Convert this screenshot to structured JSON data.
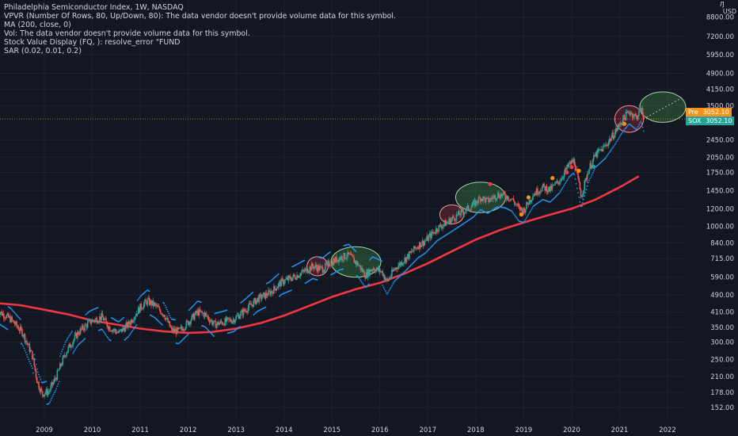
{
  "legend": {
    "title": "Philadelphia Semiconductor Index, 1W, NASDAQ",
    "vpvr": "VPVR (Number Of Rows, 80, Up/Down, 80): The data vendor doesn't provide volume data for this symbol.",
    "ma": "MA (200, close, 0)",
    "vol": "Vol: The data vendor doesn't provide volume data for this symbol.",
    "svd": "Stock Value Display (FQ, ): resolve_error \"FUND",
    "sar": "SAR (0.02, 0.01, 0.2)"
  },
  "price_axis": {
    "currency_top": "Ԓ      ",
    "currency_label": "USD",
    "ticks": [
      "8800.00",
      "7200.00",
      "5950.00",
      "4900.00",
      "4150.00",
      "3500.00",
      "2450.00",
      "2050.00",
      "1750.00",
      "1450.00",
      "1200.00",
      "1000.00",
      "840.00",
      "715.00",
      "590.00",
      "490.00",
      "410.00",
      "350.00",
      "300.00",
      "250.00",
      "210.00",
      "178.00",
      "152.00"
    ]
  },
  "tags": {
    "pre_label": "Pre",
    "pre_value": "3052.10",
    "sox_label": "SOX",
    "sox_value": "3052.10",
    "pre_color": "#f7931a",
    "sox_color": "#26a69a"
  },
  "colors": {
    "background": "#131722",
    "up": "#26a69a",
    "down": "#ef5350",
    "ma": "#f23645",
    "sar": "#2196f3",
    "current_line": "#f7931a"
  },
  "chart_data": {
    "type": "candlestick",
    "title": "Philadelphia Semiconductor Index, 1W, NASDAQ",
    "y_scale": "log",
    "ylim": [
      140,
      11000
    ],
    "x_ticks": [
      "2009",
      "2010",
      "2011",
      "2012",
      "2013",
      "2014",
      "2015",
      "2016",
      "2017",
      "2018",
      "2019",
      "2020",
      "2021",
      "2022"
    ],
    "current_price": 3052.1,
    "price_path": [
      [
        2008.0,
        420
      ],
      [
        2008.3,
        380
      ],
      [
        2008.55,
        330
      ],
      [
        2008.75,
        260
      ],
      [
        2008.85,
        200
      ],
      [
        2008.95,
        175
      ],
      [
        2009.1,
        180
      ],
      [
        2009.25,
        210
      ],
      [
        2009.45,
        270
      ],
      [
        2009.7,
        330
      ],
      [
        2009.95,
        370
      ],
      [
        2010.2,
        390
      ],
      [
        2010.35,
        350
      ],
      [
        2010.55,
        330
      ],
      [
        2010.75,
        360
      ],
      [
        2011.0,
        430
      ],
      [
        2011.15,
        460
      ],
      [
        2011.3,
        440
      ],
      [
        2011.5,
        400
      ],
      [
        2011.65,
        340
      ],
      [
        2011.8,
        335
      ],
      [
        2011.95,
        360
      ],
      [
        2012.2,
        410
      ],
      [
        2012.35,
        400
      ],
      [
        2012.55,
        360
      ],
      [
        2012.75,
        370
      ],
      [
        2012.95,
        380
      ],
      [
        2013.2,
        420
      ],
      [
        2013.45,
        470
      ],
      [
        2013.7,
        500
      ],
      [
        2013.95,
        560
      ],
      [
        2014.2,
        590
      ],
      [
        2014.45,
        630
      ],
      [
        2014.6,
        660
      ],
      [
        2014.8,
        640
      ],
      [
        2014.95,
        680
      ],
      [
        2015.15,
        720
      ],
      [
        2015.35,
        740
      ],
      [
        2015.55,
        670
      ],
      [
        2015.7,
        600
      ],
      [
        2015.85,
        650
      ],
      [
        2016.05,
        620
      ],
      [
        2016.15,
        560
      ],
      [
        2016.3,
        640
      ],
      [
        2016.55,
        720
      ],
      [
        2016.8,
        820
      ],
      [
        2016.95,
        860
      ],
      [
        2017.2,
        980
      ],
      [
        2017.45,
        1060
      ],
      [
        2017.7,
        1150
      ],
      [
        2017.95,
        1250
      ],
      [
        2018.1,
        1350
      ],
      [
        2018.25,
        1300
      ],
      [
        2018.45,
        1390
      ],
      [
        2018.6,
        1380
      ],
      [
        2018.75,
        1330
      ],
      [
        2018.9,
        1200
      ],
      [
        2019.0,
        1180
      ],
      [
        2019.2,
        1400
      ],
      [
        2019.4,
        1500
      ],
      [
        2019.55,
        1460
      ],
      [
        2019.75,
        1610
      ],
      [
        2019.95,
        1900
      ],
      [
        2020.05,
        1980
      ],
      [
        2020.2,
        1370
      ],
      [
        2020.35,
        1800
      ],
      [
        2020.5,
        2100
      ],
      [
        2020.7,
        2300
      ],
      [
        2020.9,
        2650
      ],
      [
        2021.05,
        3000
      ],
      [
        2021.2,
        3300
      ],
      [
        2021.35,
        3100
      ],
      [
        2021.45,
        3400
      ],
      [
        2021.5,
        3052
      ]
    ],
    "ma200": [
      [
        2008.0,
        450
      ],
      [
        2008.5,
        440
      ],
      [
        2009.0,
        420
      ],
      [
        2009.5,
        400
      ],
      [
        2010.0,
        375
      ],
      [
        2010.5,
        360
      ],
      [
        2011.0,
        345
      ],
      [
        2011.5,
        335
      ],
      [
        2012.0,
        330
      ],
      [
        2012.5,
        333
      ],
      [
        2013.0,
        345
      ],
      [
        2013.5,
        365
      ],
      [
        2014.0,
        395
      ],
      [
        2014.5,
        435
      ],
      [
        2015.0,
        480
      ],
      [
        2015.5,
        520
      ],
      [
        2016.0,
        555
      ],
      [
        2016.5,
        610
      ],
      [
        2017.0,
        680
      ],
      [
        2017.5,
        770
      ],
      [
        2018.0,
        870
      ],
      [
        2018.5,
        960
      ],
      [
        2019.0,
        1040
      ],
      [
        2019.5,
        1120
      ],
      [
        2020.0,
        1200
      ],
      [
        2020.5,
        1320
      ],
      [
        2021.0,
        1500
      ],
      [
        2021.4,
        1680
      ]
    ],
    "highlight_ellipses": [
      {
        "x": 2014.7,
        "y": 660,
        "rx": 0.22,
        "ry_log": 0.1,
        "color": "red"
      },
      {
        "x": 2015.5,
        "y": 690,
        "rx": 0.52,
        "ry_log": 0.16,
        "color": "green"
      },
      {
        "x": 2017.5,
        "y": 1130,
        "rx": 0.25,
        "ry_log": 0.1,
        "color": "red"
      },
      {
        "x": 2018.1,
        "y": 1350,
        "rx": 0.52,
        "ry_log": 0.16,
        "color": "green"
      },
      {
        "x": 2021.2,
        "y": 3050,
        "rx": 0.3,
        "ry_log": 0.14,
        "color": "red"
      },
      {
        "x": 2021.9,
        "y": 3450,
        "rx": 0.48,
        "ry_log": 0.16,
        "color": "green"
      }
    ],
    "forecast_dots": [
      [
        2021.5,
        3052
      ],
      [
        2022.3,
        3800
      ]
    ],
    "marker_dots": [
      {
        "x": 2018.3,
        "y": 1550,
        "color": "#f23645"
      },
      {
        "x": 2019.1,
        "y": 1350,
        "color": "#f7931a"
      },
      {
        "x": 2019.6,
        "y": 1650,
        "color": "#f7931a"
      },
      {
        "x": 2019.9,
        "y": 1750,
        "color": "#f23645"
      },
      {
        "x": 2020.0,
        "y": 1850,
        "color": "#f23645"
      },
      {
        "x": 2020.15,
        "y": 1780,
        "color": "#f7931a"
      },
      {
        "x": 2020.45,
        "y": 1860,
        "color": "#26a69a"
      },
      {
        "x": 2018.95,
        "y": 1130,
        "color": "#f7931a"
      },
      {
        "x": 2021.1,
        "y": 2900,
        "color": "#f7931a"
      }
    ]
  }
}
